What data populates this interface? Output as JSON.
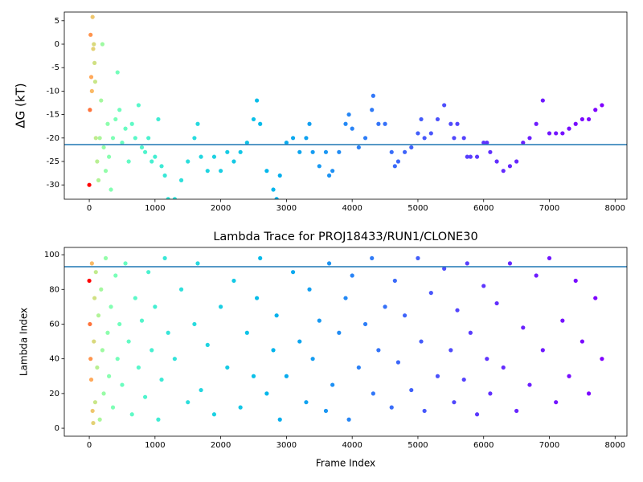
{
  "chart_data": [
    {
      "type": "scatter",
      "ylabel": "ΔG (kT)",
      "colormap": "rainbow_r",
      "hline": -21.4,
      "hline_color": "#1f77b4",
      "xlim": [
        -380,
        8180
      ],
      "ylim": [
        -33.05,
        6.85
      ],
      "xticks": [
        0,
        1000,
        2000,
        3000,
        4000,
        5000,
        6000,
        7000,
        8000
      ],
      "yticks": [
        -30,
        -25,
        -20,
        -15,
        -10,
        -5,
        0,
        5
      ],
      "x": [
        0,
        10,
        20,
        30,
        40,
        50,
        60,
        70,
        80,
        90,
        100,
        120,
        140,
        160,
        180,
        200,
        220,
        250,
        280,
        300,
        330,
        360,
        400,
        430,
        460,
        500,
        550,
        600,
        650,
        700,
        750,
        800,
        850,
        900,
        950,
        1000,
        1050,
        1100,
        1150,
        1200,
        1300,
        1400,
        1500,
        1600,
        1650,
        1700,
        1800,
        1900,
        2000,
        2100,
        2200,
        2300,
        2400,
        2500,
        2550,
        2600,
        2700,
        2800,
        2850,
        2900,
        3000,
        3100,
        3200,
        3300,
        3350,
        3400,
        3500,
        3600,
        3650,
        3700,
        3800,
        3900,
        3950,
        4000,
        4100,
        4200,
        4300,
        4320,
        4400,
        4500,
        4600,
        4650,
        4700,
        4800,
        4900,
        5000,
        5050,
        5100,
        5200,
        5300,
        5400,
        5500,
        5550,
        5600,
        5700,
        5750,
        5800,
        5900,
        6000,
        6050,
        6100,
        6200,
        6300,
        6400,
        6500,
        6600,
        6700,
        6800,
        6900,
        7000,
        7100,
        7200,
        7300,
        7400,
        7500,
        7600,
        7700,
        7800
      ],
      "values": [
        -30,
        -14,
        2,
        -7,
        -10,
        5.8,
        -1,
        0,
        -4,
        -8,
        -20,
        -25,
        -29,
        -20,
        -12,
        0,
        -22,
        -27,
        -17,
        -24,
        -31,
        -20,
        -16,
        -6,
        -14,
        -21,
        -18,
        -25,
        -17,
        -20,
        -13,
        -22,
        -23,
        -20,
        -25,
        -24,
        -16,
        -26,
        -28,
        -33,
        -33,
        -29,
        -25,
        -20,
        -17,
        -24,
        -27,
        -24,
        -27,
        -23,
        -25,
        -23,
        -21,
        -16,
        -12,
        -17,
        -27,
        -31,
        -33,
        -28,
        -21,
        -20,
        -23,
        -20,
        -17,
        -23,
        -26,
        -23,
        -28,
        -27,
        -23,
        -17,
        -15,
        -18,
        -22,
        -20,
        -14,
        -11,
        -17,
        -17,
        -23,
        -26,
        -25,
        -23,
        -22,
        -19,
        -16,
        -20,
        -19,
        -16,
        -13,
        -17,
        -20,
        -17,
        -20,
        -24,
        -24,
        -24,
        -21,
        -21,
        -23,
        -25,
        -27,
        -26,
        -25,
        -21,
        -20,
        -17,
        -12,
        -19,
        -19,
        -19,
        -18,
        -17,
        -16,
        -16,
        -14,
        -13
      ]
    },
    {
      "type": "scatter",
      "title": "Lambda Trace for PROJ18433/RUN1/CLONE30",
      "xlabel": "Frame Index",
      "ylabel": "Lambda Index",
      "colormap": "rainbow_r",
      "hline": 93.1,
      "hline_color": "#1f77b4",
      "xlim": [
        -380,
        8180
      ],
      "ylim": [
        -4.6,
        104.2
      ],
      "xticks": [
        0,
        1000,
        2000,
        3000,
        4000,
        5000,
        6000,
        7000,
        8000
      ],
      "yticks": [
        0,
        20,
        40,
        60,
        80,
        100
      ],
      "x": [
        0,
        10,
        20,
        30,
        40,
        50,
        60,
        70,
        80,
        90,
        100,
        120,
        140,
        160,
        180,
        200,
        220,
        250,
        280,
        300,
        330,
        360,
        400,
        430,
        460,
        500,
        550,
        600,
        650,
        700,
        750,
        800,
        850,
        900,
        950,
        1000,
        1050,
        1100,
        1150,
        1200,
        1300,
        1400,
        1500,
        1600,
        1650,
        1700,
        1800,
        1900,
        2000,
        2100,
        2200,
        2300,
        2400,
        2500,
        2550,
        2600,
        2700,
        2800,
        2850,
        2900,
        3000,
        3100,
        3200,
        3300,
        3350,
        3400,
        3500,
        3600,
        3650,
        3700,
        3800,
        3900,
        3950,
        4000,
        4100,
        4200,
        4300,
        4320,
        4400,
        4500,
        4600,
        4650,
        4700,
        4800,
        4900,
        5000,
        5050,
        5100,
        5200,
        5300,
        5400,
        5500,
        5550,
        5600,
        5700,
        5750,
        5800,
        5900,
        6000,
        6050,
        6100,
        6200,
        6300,
        6400,
        6500,
        6600,
        6700,
        6800,
        6900,
        7000,
        7100,
        7200,
        7300,
        7400,
        7500,
        7600,
        7700,
        7800
      ],
      "values": [
        85,
        60,
        40,
        28,
        95,
        10,
        3,
        50,
        75,
        15,
        90,
        35,
        65,
        5,
        80,
        45,
        20,
        98,
        55,
        30,
        70,
        12,
        88,
        40,
        60,
        25,
        95,
        50,
        8,
        75,
        35,
        62,
        18,
        90,
        45,
        70,
        5,
        28,
        98,
        55,
        40,
        80,
        15,
        60,
        95,
        22,
        48,
        8,
        70,
        35,
        85,
        12,
        55,
        30,
        75,
        98,
        20,
        45,
        65,
        5,
        30,
        90,
        50,
        15,
        80,
        40,
        62,
        10,
        95,
        25,
        55,
        75,
        5,
        88,
        35,
        60,
        98,
        20,
        45,
        70,
        12,
        85,
        38,
        65,
        22,
        98,
        50,
        10,
        78,
        30,
        92,
        45,
        15,
        68,
        28,
        95,
        55,
        8,
        82,
        40,
        20,
        72,
        35,
        95,
        10,
        58,
        25,
        88,
        45,
        98,
        15,
        62,
        30,
        85,
        50,
        20,
        75,
        40
      ]
    }
  ]
}
